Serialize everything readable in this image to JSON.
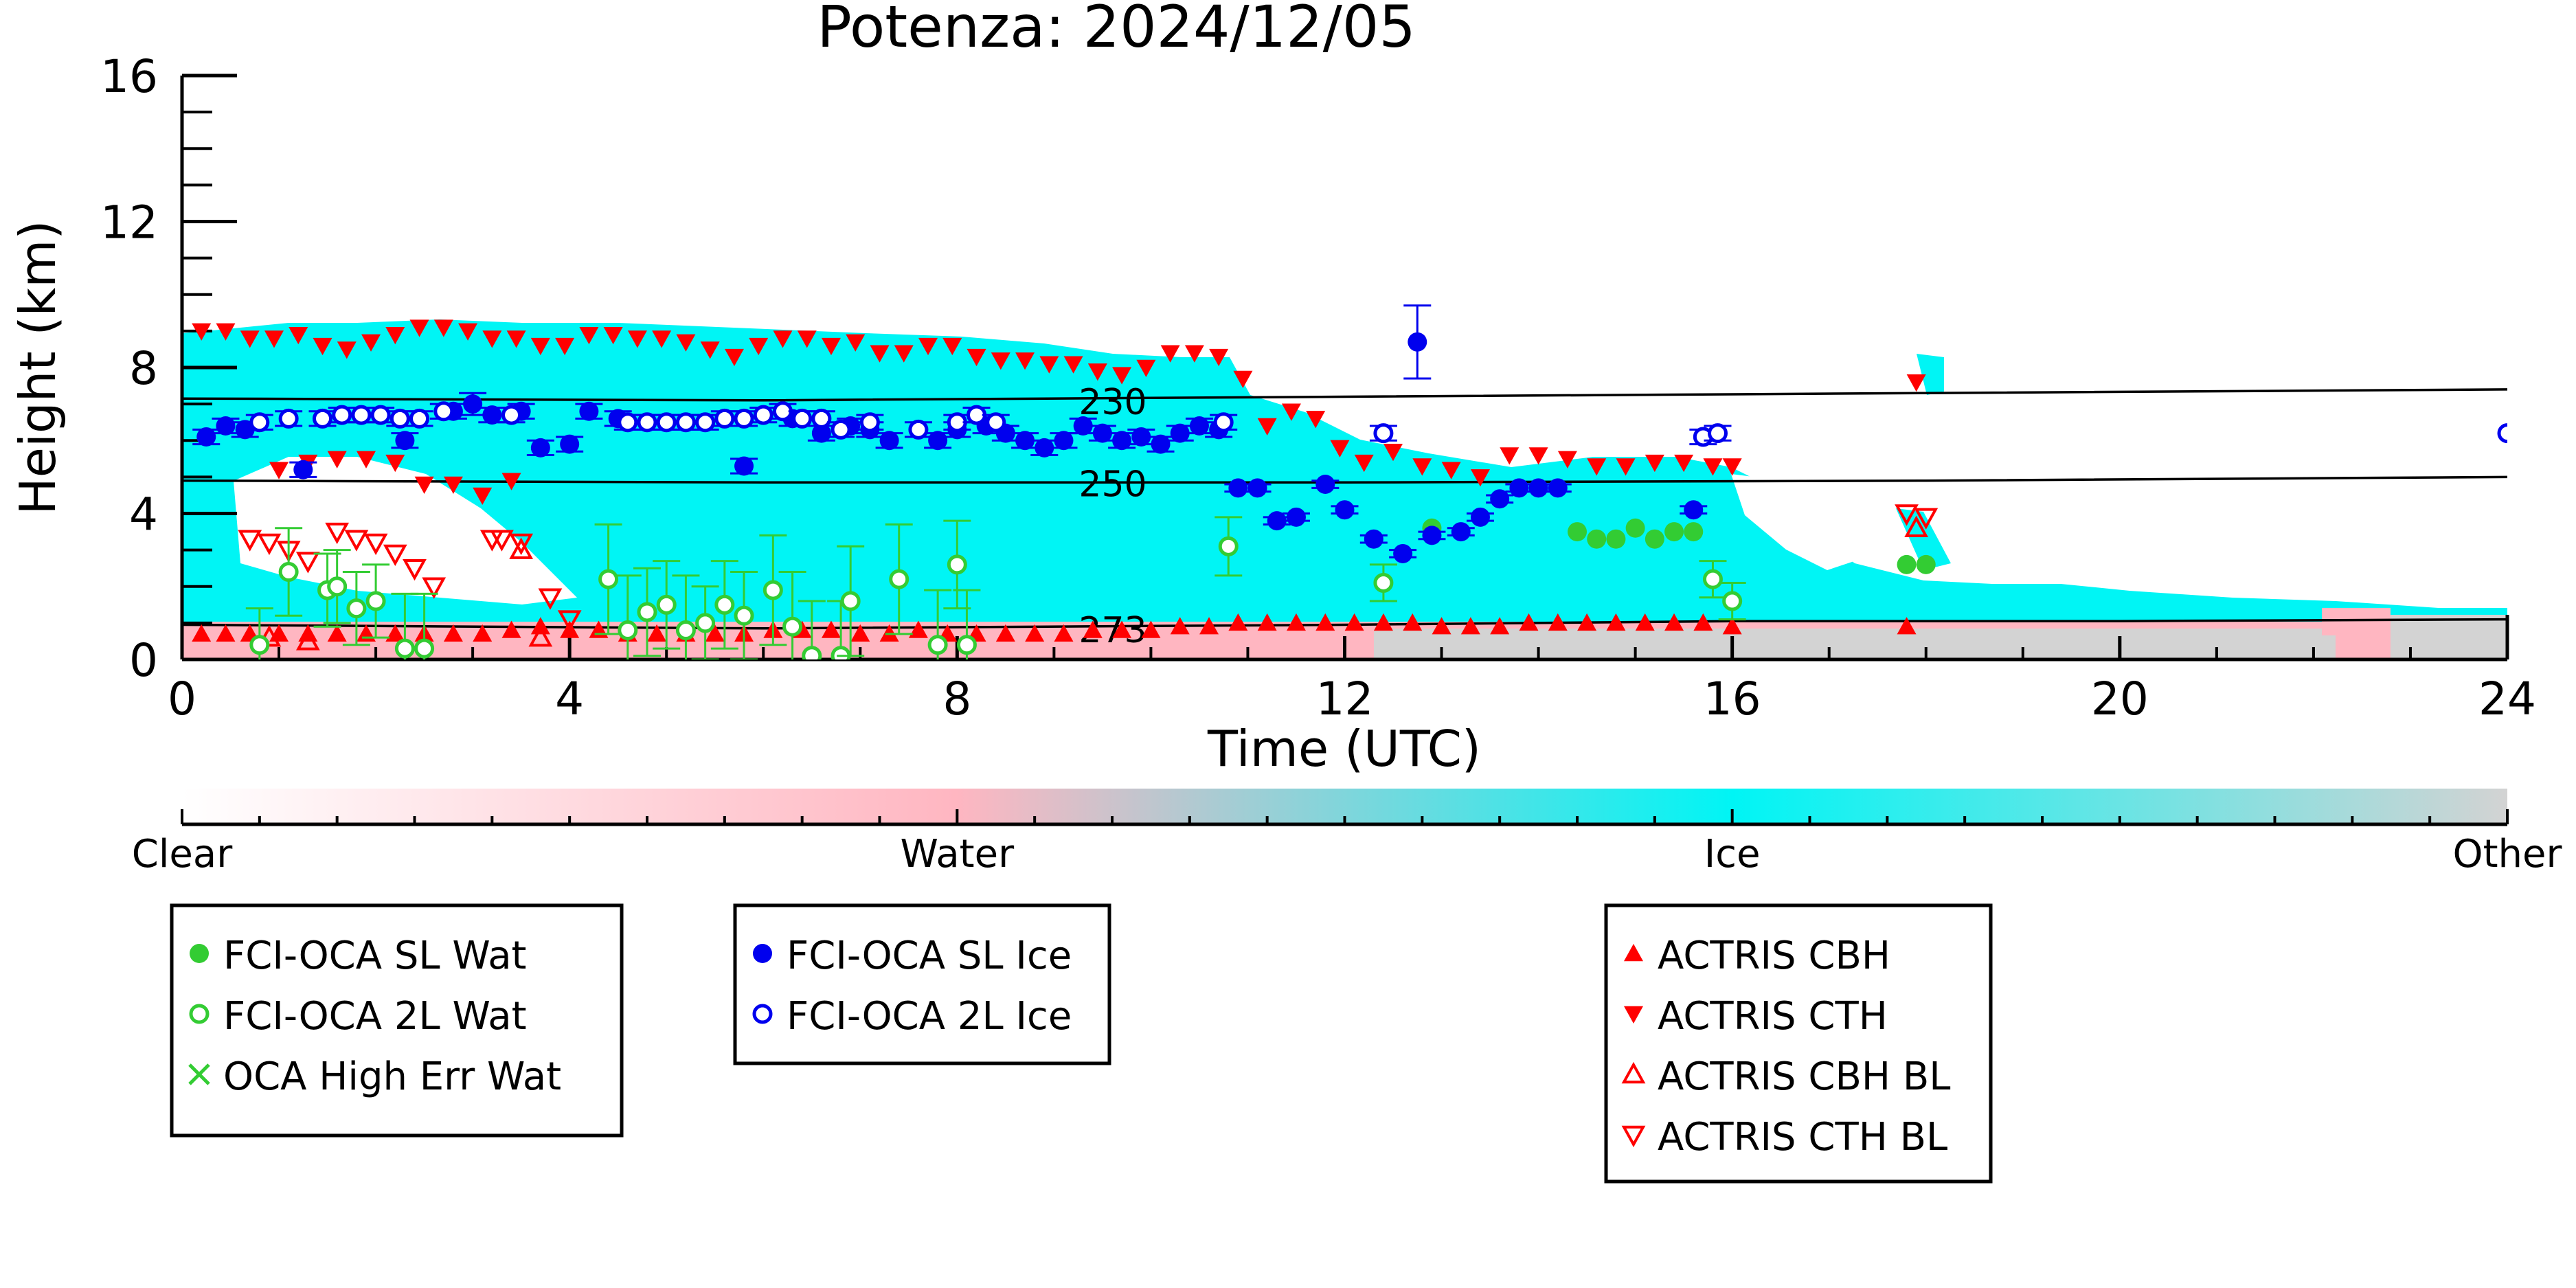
{
  "chart_data": {
    "type": "scatter",
    "title": "Potenza: 2024/12/05",
    "xlabel": "Time (UTC)",
    "ylabel": "Height (km)",
    "xlim": [
      0,
      24
    ],
    "ylim": [
      0,
      16
    ],
    "x_ticks": [
      "0",
      "4",
      "8",
      "12",
      "16",
      "20",
      "24"
    ],
    "y_ticks": [
      "0",
      "4",
      "8",
      "12",
      "16"
    ],
    "classification_colorbar": {
      "labels": [
        "Clear",
        "Water",
        "Ice",
        "Other"
      ],
      "colors": [
        "#ffffff",
        "#ffb6c1",
        "#00f5f5",
        "#d3d3d3"
      ]
    },
    "temperature_contours": [
      {
        "label": "230",
        "x": [
          0,
          6,
          12,
          18,
          24
        ],
        "y": [
          7.15,
          7.1,
          7.2,
          7.3,
          7.4
        ]
      },
      {
        "label": "250",
        "x": [
          0,
          6,
          12,
          18,
          24
        ],
        "y": [
          4.9,
          4.85,
          4.85,
          4.9,
          5.0
        ]
      },
      {
        "label": "273",
        "x": [
          0,
          6,
          12,
          16,
          20,
          24
        ],
        "y": [
          0.95,
          0.85,
          0.95,
          1.05,
          1.05,
          1.1
        ]
      }
    ],
    "legend_groups": [
      {
        "entries": [
          "FCI-OCA SL Wat",
          "FCI-OCA 2L Wat",
          "OCA High Err Wat"
        ]
      },
      {
        "entries": [
          "FCI-OCA SL Ice",
          "FCI-OCA 2L Ice"
        ]
      },
      {
        "entries": [
          "ACTRIS CBH",
          "ACTRIS CTH",
          "ACTRIS CBH BL",
          "ACTRIS CTH BL"
        ]
      }
    ],
    "series": [
      {
        "name": "FCI-OCA SL Wat",
        "color": "#33cc33",
        "x": [
          14.4,
          14.6,
          14.8,
          15.0,
          15.2,
          15.4,
          15.6,
          12.9,
          17.8,
          18.0
        ],
        "y": [
          3.5,
          3.3,
          3.3,
          3.6,
          3.3,
          3.5,
          3.5,
          3.6,
          2.6,
          2.6
        ]
      },
      {
        "name": "FCI-OCA 2L Wat",
        "color": "#33cc33",
        "x": [
          0.8,
          1.1,
          1.5,
          1.6,
          1.8,
          2.0,
          2.3,
          2.5,
          4.4,
          4.6,
          4.8,
          5.0,
          5.2,
          5.4,
          5.6,
          5.8,
          6.1,
          6.3,
          6.5,
          6.8,
          6.9,
          7.4,
          7.8,
          8.0,
          8.1,
          10.8,
          12.4,
          15.8,
          16.0
        ],
        "y": [
          0.4,
          2.4,
          1.9,
          2.0,
          1.4,
          1.6,
          0.3,
          0.3,
          2.2,
          0.8,
          1.3,
          1.5,
          0.8,
          1.0,
          1.5,
          1.2,
          1.9,
          0.9,
          0.1,
          0.1,
          1.6,
          2.2,
          0.4,
          2.6,
          0.4,
          3.1,
          2.1,
          2.2,
          1.6
        ],
        "yerr": [
          1.0,
          1.2,
          1.0,
          1.0,
          1.0,
          1.0,
          1.5,
          1.5,
          1.5,
          1.5,
          1.2,
          1.2,
          1.5,
          1.0,
          1.2,
          1.2,
          1.5,
          1.5,
          1.5,
          1.5,
          1.5,
          1.5,
          1.5,
          1.2,
          1.5,
          0.8,
          0.5,
          0.5,
          0.5
        ]
      },
      {
        "name": "FCI-OCA SL Ice",
        "color": "#0000ee",
        "x": [
          0.25,
          0.45,
          0.65,
          1.25,
          2.3,
          2.8,
          3.0,
          3.2,
          3.5,
          3.7,
          4.0,
          4.2,
          4.5,
          5.8,
          6.3,
          6.6,
          6.9,
          7.1,
          7.3,
          7.8,
          8.0,
          8.3,
          8.5,
          8.7,
          8.9,
          9.1,
          9.3,
          9.5,
          9.7,
          9.9,
          10.1,
          10.3,
          10.5,
          10.7,
          10.9,
          11.1,
          11.3,
          11.5,
          11.8,
          12.0,
          12.3,
          12.6,
          12.75,
          12.9,
          13.2,
          13.4,
          13.6,
          13.8,
          14.0,
          14.2,
          15.6
        ],
        "y": [
          6.1,
          6.4,
          6.3,
          5.2,
          6.0,
          6.8,
          7.0,
          6.7,
          6.8,
          5.8,
          5.9,
          6.8,
          6.6,
          5.3,
          6.6,
          6.2,
          6.4,
          6.3,
          6.0,
          6.0,
          6.3,
          6.4,
          6.2,
          6.0,
          5.8,
          6.0,
          6.4,
          6.2,
          6.0,
          6.1,
          5.9,
          6.2,
          6.4,
          6.3,
          4.7,
          4.7,
          3.8,
          3.9,
          4.8,
          4.1,
          3.3,
          2.9,
          8.7,
          3.4,
          3.5,
          3.9,
          4.4,
          4.7,
          4.7,
          4.7,
          4.1
        ],
        "yerr": [
          0.2,
          0.2,
          0.2,
          0.2,
          0.2,
          0.2,
          0.3,
          0.2,
          0.2,
          0.2,
          0.2,
          0.2,
          0.2,
          0.2,
          0.2,
          0.2,
          0.2,
          0.2,
          0.2,
          0.2,
          0.2,
          0.2,
          0.2,
          0.2,
          0.2,
          0.2,
          0.2,
          0.2,
          0.2,
          0.2,
          0.2,
          0.2,
          0.2,
          0.2,
          0.1,
          0.1,
          0.1,
          0.1,
          0.1,
          0.1,
          0.1,
          0.1,
          1.0,
          0.1,
          0.1,
          0.1,
          0.1,
          0.1,
          0.1,
          0.1,
          0.1
        ]
      },
      {
        "name": "FCI-OCA 2L Ice",
        "color": "#0000ee",
        "x": [
          0.8,
          1.1,
          1.45,
          1.65,
          1.85,
          2.05,
          2.25,
          2.45,
          2.7,
          3.4,
          4.6,
          4.8,
          5.0,
          5.2,
          5.4,
          5.6,
          5.8,
          6.0,
          6.2,
          6.4,
          6.6,
          6.8,
          7.1,
          7.6,
          8.0,
          8.2,
          8.4,
          10.75,
          12.4,
          15.7,
          15.85,
          24.0
        ],
        "y": [
          6.5,
          6.6,
          6.6,
          6.7,
          6.7,
          6.7,
          6.6,
          6.6,
          6.8,
          6.7,
          6.5,
          6.5,
          6.5,
          6.5,
          6.5,
          6.6,
          6.6,
          6.7,
          6.8,
          6.6,
          6.6,
          6.3,
          6.5,
          6.3,
          6.5,
          6.7,
          6.5,
          6.5,
          6.2,
          6.1,
          6.2,
          6.2
        ],
        "yerr": [
          0.2,
          0.2,
          0.2,
          0.2,
          0.2,
          0.2,
          0.2,
          0.2,
          0.2,
          0.2,
          0.2,
          0.2,
          0.2,
          0.2,
          0.2,
          0.2,
          0.2,
          0.2,
          0.2,
          0.2,
          0.2,
          0.2,
          0.2,
          0.2,
          0.2,
          0.2,
          0.2,
          0.2,
          0.2,
          0.2,
          0.2,
          0.0
        ]
      },
      {
        "name": "ACTRIS CBH",
        "color": "#ff0000",
        "x": [
          0.2,
          0.45,
          0.7,
          1.0,
          1.3,
          1.6,
          1.9,
          2.2,
          2.5,
          2.8,
          3.1,
          3.4,
          3.7,
          4.0,
          4.3,
          4.6,
          4.9,
          5.2,
          5.5,
          5.8,
          6.1,
          6.4,
          6.7,
          7.0,
          7.3,
          7.6,
          7.9,
          8.2,
          8.5,
          8.8,
          9.1,
          9.4,
          9.7,
          10.0,
          10.3,
          10.6,
          10.9,
          11.2,
          11.5,
          11.8,
          12.1,
          12.4,
          12.7,
          13.0,
          13.3,
          13.6,
          13.9,
          14.2,
          14.5,
          14.8,
          15.1,
          15.4,
          15.7,
          16.0,
          17.8
        ],
        "y": [
          0.7,
          0.7,
          0.7,
          0.7,
          0.7,
          0.7,
          0.7,
          0.7,
          0.7,
          0.7,
          0.7,
          0.8,
          0.9,
          0.8,
          0.8,
          0.7,
          0.7,
          0.7,
          0.7,
          0.7,
          0.8,
          0.8,
          0.8,
          0.7,
          0.7,
          0.8,
          0.7,
          0.7,
          0.7,
          0.7,
          0.7,
          0.8,
          0.8,
          0.8,
          0.9,
          0.9,
          1.0,
          1.0,
          1.0,
          1.0,
          1.0,
          1.0,
          1.0,
          0.9,
          0.9,
          0.9,
          1.0,
          1.0,
          1.0,
          1.0,
          1.0,
          1.0,
          1.0,
          0.9,
          0.9
        ]
      },
      {
        "name": "ACTRIS CTH",
        "color": "#ff0000",
        "x": [
          0.2,
          0.45,
          0.7,
          0.95,
          1.2,
          1.45,
          1.7,
          1.95,
          2.2,
          2.45,
          2.7,
          2.95,
          3.2,
          3.45,
          3.7,
          3.95,
          4.2,
          4.45,
          4.7,
          4.95,
          5.2,
          5.45,
          5.7,
          5.95,
          6.2,
          6.45,
          6.7,
          6.95,
          7.2,
          7.45,
          7.7,
          7.95,
          8.2,
          8.45,
          8.7,
          8.95,
          9.2,
          9.45,
          9.7,
          9.95,
          10.2,
          10.45,
          10.7,
          10.95,
          11.2,
          11.45,
          11.7,
          11.95,
          12.2,
          12.5,
          12.8,
          13.1,
          13.4,
          13.7,
          14.0,
          14.3,
          14.6,
          14.9,
          15.2,
          15.5,
          15.8,
          16.0,
          17.9,
          1.0,
          1.3,
          1.6,
          1.9,
          2.2,
          2.5,
          2.8,
          3.1,
          3.4
        ],
        "y": [
          9.0,
          9.0,
          8.8,
          8.8,
          8.9,
          8.6,
          8.5,
          8.7,
          8.9,
          9.1,
          9.1,
          9.0,
          8.8,
          8.8,
          8.6,
          8.6,
          8.9,
          8.9,
          8.8,
          8.8,
          8.7,
          8.5,
          8.3,
          8.6,
          8.8,
          8.8,
          8.6,
          8.7,
          8.4,
          8.4,
          8.6,
          8.6,
          8.3,
          8.2,
          8.2,
          8.1,
          8.1,
          7.9,
          7.8,
          8.0,
          8.4,
          8.4,
          8.3,
          7.7,
          6.4,
          6.8,
          6.6,
          5.8,
          5.4,
          5.7,
          5.3,
          5.2,
          5.0,
          5.6,
          5.6,
          5.5,
          5.3,
          5.3,
          5.4,
          5.4,
          5.3,
          5.3,
          7.6,
          5.2,
          5.4,
          5.5,
          5.5,
          5.4,
          4.8,
          4.8,
          4.5,
          4.9
        ]
      },
      {
        "name": "ACTRIS CBH BL",
        "color": "#ff0000",
        "x": [
          0.9,
          1.3,
          3.5,
          3.7,
          17.9
        ],
        "y": [
          0.6,
          0.5,
          3.0,
          0.6,
          3.6
        ]
      },
      {
        "name": "ACTRIS CTH BL",
        "color": "#ff0000",
        "x": [
          0.7,
          0.9,
          1.1,
          1.3,
          1.6,
          1.8,
          2.0,
          2.2,
          2.4,
          2.6,
          3.2,
          3.3,
          3.5,
          3.8,
          4.0,
          17.8,
          18.0
        ],
        "y": [
          3.3,
          3.2,
          3.0,
          2.7,
          3.5,
          3.3,
          3.2,
          2.9,
          2.5,
          2.0,
          3.3,
          3.3,
          3.2,
          1.7,
          1.1,
          4.0,
          3.9
        ]
      }
    ]
  }
}
